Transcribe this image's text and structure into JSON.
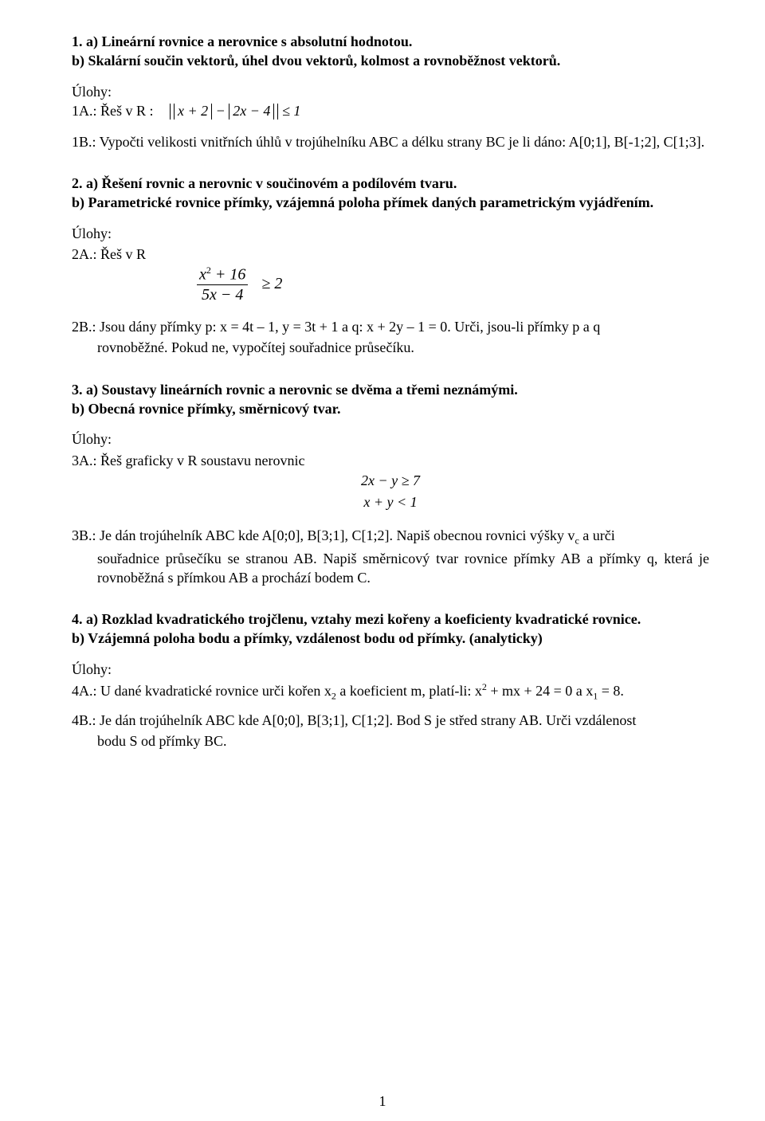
{
  "q1": {
    "a": "1. a) Lineární rovnice a nerovnice s absolutní hodnotou.",
    "b": "b) Skalární součin vektorů, úhel dvou vektorů, kolmost a rovnoběžnost vektorů.",
    "ulohy": "Úlohy:",
    "task1a_label": "1A.:  Řeš v R :",
    "eq_abs_inner1": "x + 2",
    "eq_minus": " − ",
    "eq_abs_inner2": "2x − 4",
    "eq_tail": " ≤ 1",
    "task1b": "1B.: Vypočti velikosti vnitřních úhlů v trojúhelníku ABC a délku strany BC je li dáno: A[0;1], B[-1;2], C[1;3]."
  },
  "q2": {
    "a": "2. a) Řešení rovnic a nerovnic v součinovém a podílovém tvaru.",
    "b": "b) Parametrické rovnice přímky, vzájemná poloha přímek daných parametrickým vyjádřením.",
    "ulohy": "Úlohy:",
    "task2a_label": "2A.:  Řeš v R",
    "frac_num_x": "x",
    "frac_num_exp": "2",
    "frac_num_tail": " + 16",
    "frac_den": "5x − 4",
    "frac_tail": "≥ 2",
    "task2b_1": "2B.: Jsou dány přímky p: x = 4t – 1, y = 3t + 1 a q: x + 2y – 1 = 0. Urči, jsou-li přímky p a q",
    "task2b_2": "rovnoběžné. Pokud ne, vypočítej souřadnice průsečíku."
  },
  "q3": {
    "a": "3. a) Soustavy lineárních rovnic a nerovnic se dvěma a třemi neznámými.",
    "b": "b) Obecná rovnice přímky, směrnicový tvar.",
    "ulohy": "Úlohy:",
    "task3a": "3A.: Řeš graficky v R  soustavu nerovnic",
    "eq1": "2x − y ≥ 7",
    "eq2": "x + y < 1",
    "task3b_1": "3B.: Je dán trojúhelník ABC kde A[0;0], B[3;1], C[1;2]. Napiš obecnou rovnici výšky v",
    "task3b_sub": "c",
    "task3b_1tail": " a urči",
    "task3b_2": "souřadnice průsečíku se stranou AB. Napiš směrnicový tvar rovnice přímky AB a  přímky q, která je rovnoběžná s přímkou AB a prochází bodem C."
  },
  "q4": {
    "a": "4. a) Rozklad kvadratického trojčlenu, vztahy mezi kořeny a koeficienty kvadratické rovnice.",
    "b": "b) Vzájemná poloha bodu a přímky, vzdálenost bodu od přímky. (analyticky)",
    "ulohy": "Úlohy:",
    "task4a_1": "4A.: U dané kvadratické rovnice urči kořen x",
    "task4a_s1": "2",
    "task4a_2": " a koeficient m, platí-li: x",
    "task4a_e1": "2",
    "task4a_3": " + mx + 24 = 0 a x",
    "task4a_s2": "1",
    "task4a_4": " = 8.",
    "task4b_1": "4B.: Je dán trojúhelník ABC kde A[0;0], B[3;1], C[1;2]. Bod S je střed strany AB. Urči vzdálenost",
    "task4b_2": "bodu S od přímky BC."
  },
  "page_number": "1"
}
